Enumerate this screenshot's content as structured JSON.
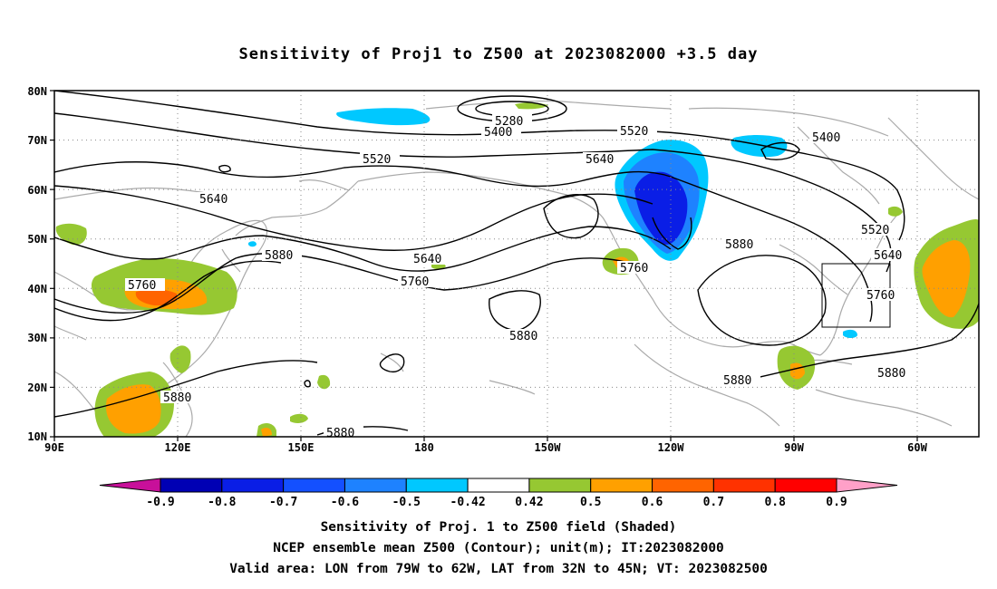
{
  "title": "Sensitivity of Proj1 to Z500 at 2023082000 +3.5 day",
  "axes": {
    "lat_labels": [
      "80N",
      "70N",
      "60N",
      "50N",
      "40N",
      "30N",
      "20N",
      "10N"
    ],
    "lon_labels": [
      "90E",
      "120E",
      "150E",
      "180",
      "150W",
      "120W",
      "90W",
      "60W"
    ]
  },
  "contour_labels": [
    {
      "text": "5280"
    },
    {
      "text": "5400"
    },
    {
      "text": "5520"
    },
    {
      "text": "5520"
    },
    {
      "text": "5400"
    },
    {
      "text": "5640"
    },
    {
      "text": "5520"
    },
    {
      "text": "5640"
    },
    {
      "text": "5640"
    },
    {
      "text": "5760"
    },
    {
      "text": "5760"
    },
    {
      "text": "5880"
    },
    {
      "text": "5760"
    },
    {
      "text": "5880"
    },
    {
      "text": "5640"
    },
    {
      "text": "5760"
    },
    {
      "text": "5880"
    },
    {
      "text": "5880"
    },
    {
      "text": "5880"
    },
    {
      "text": "5880"
    },
    {
      "text": "5880"
    }
  ],
  "colorbar": {
    "labels": [
      "-0.9",
      "-0.8",
      "-0.7",
      "-0.6",
      "-0.5",
      "-0.42",
      "0.42",
      "0.5",
      "0.6",
      "0.7",
      "0.8",
      "0.9"
    ],
    "colors": [
      "#c8109a",
      "#0000b4",
      "#0a1ee6",
      "#1450ff",
      "#1e82ff",
      "#00c8ff",
      "#ffffff",
      "#96c832",
      "#ffa000",
      "#ff6400",
      "#ff3200",
      "#ff0000",
      "#ffa0c8"
    ]
  },
  "shading_colors": {
    "negative_strong": "#0a1ee6",
    "negative_mid": "#1e82ff",
    "negative_weak": "#00c8ff",
    "positive_weak": "#96c832",
    "positive_mid": "#ffa000",
    "positive_strong": "#ff6400",
    "coastline": "#aaaaaa"
  },
  "captions": [
    "Sensitivity of Proj. 1 to Z500 field (Shaded)",
    "NCEP ensemble mean Z500 (Contour); unit(m); IT:2023082000",
    "Valid area: LON from 79W to 62W, LAT from 32N to 45N; VT: 2023082500"
  ]
}
